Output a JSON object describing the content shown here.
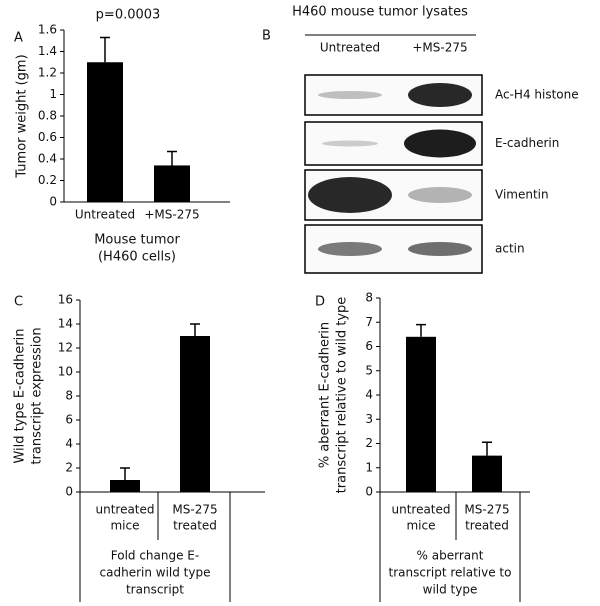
{
  "chart_data": [
    {
      "type": "bar",
      "panel_label": "A",
      "title": "p=0.0003",
      "ylabel": [
        "Tumor weight (gm)"
      ],
      "xlabel": [
        "Mouse tumor",
        "(H460 cells)"
      ],
      "categories": [
        [
          "Untreated"
        ],
        [
          "+MS-275"
        ]
      ],
      "values": [
        1.3,
        0.34
      ],
      "errors": [
        0.23,
        0.13
      ],
      "color": "#000000",
      "ylim": [
        0,
        1.6
      ],
      "yticks": [
        0,
        0.2,
        0.4,
        0.6,
        0.8,
        1,
        1.2,
        1.4,
        1.6
      ]
    },
    {
      "type": "blot",
      "panel_label": "B",
      "title": "H460 mouse tumor lysates",
      "lanes": [
        "Untreated",
        "+MS-275"
      ],
      "rows": [
        "Ac-H4 histone",
        "E-cadherin",
        "Vimentin",
        "actin"
      ]
    },
    {
      "type": "bar",
      "panel_label": "C",
      "ylabel": [
        "Wild type E-cadherin",
        "transcript expression"
      ],
      "xlabel": [
        "Fold change E-",
        "cadherin wild type",
        "transcript"
      ],
      "categories": [
        [
          "untreated",
          "mice"
        ],
        [
          "MS-275",
          "treated"
        ]
      ],
      "values": [
        1,
        13
      ],
      "errors": [
        1,
        1
      ],
      "color": "#000000",
      "ylim": [
        0,
        16
      ],
      "yticks": [
        0,
        2,
        4,
        6,
        8,
        10,
        12,
        14,
        16
      ]
    },
    {
      "type": "bar",
      "panel_label": "D",
      "ylabel": [
        "% aberrant  E-cadherin",
        "transcript relative to wild type"
      ],
      "xlabel": [
        "% aberrant",
        "transcript relative to",
        "wild type"
      ],
      "categories": [
        [
          "untreated",
          "mice"
        ],
        [
          "MS-275",
          "treated"
        ]
      ],
      "values": [
        6.4,
        1.5
      ],
      "errors": [
        0.5,
        0.55
      ],
      "color": "#000000",
      "ylim": [
        0,
        8
      ],
      "yticks": [
        0,
        1,
        2,
        3,
        4,
        5,
        6,
        7,
        8
      ]
    }
  ]
}
